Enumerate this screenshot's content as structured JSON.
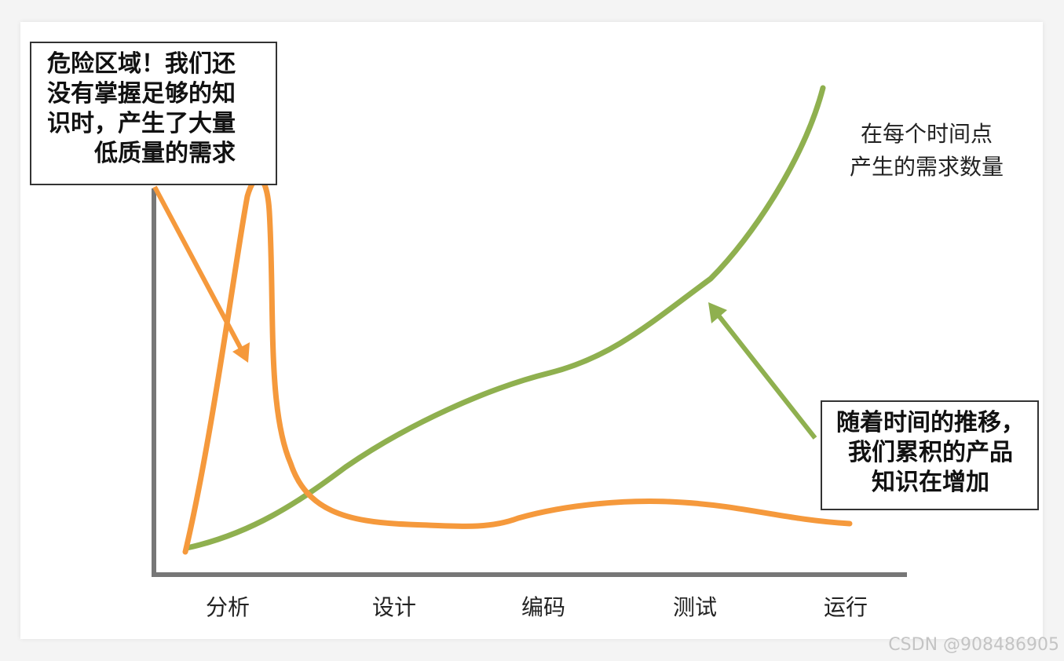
{
  "callouts": {
    "danger_zone": [
      "危险区域！我们还",
      "没有掌握足够的知",
      "识时，产生了大量",
      "低质量的需求"
    ],
    "knowledge": [
      "随着时间的推移，",
      "我们累积的产品",
      "知识在增加"
    ]
  },
  "curve_label": [
    "在每个时间点",
    "产生的需求数量"
  ],
  "stages": [
    "分析",
    "设计",
    "编码",
    "测试",
    "运行"
  ],
  "colors": {
    "orange_curve": "#f5993c",
    "green_curve": "#8fb04f",
    "axis": "#777777"
  },
  "watermark": "CSDN @908486905"
}
